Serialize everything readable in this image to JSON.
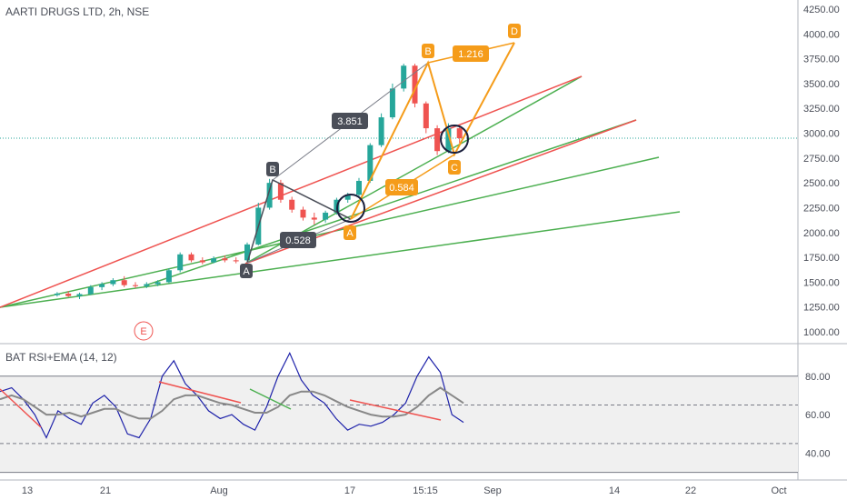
{
  "chart_data": [
    {
      "type": "candlestick",
      "title": "AARTI DRUGS LTD, 2h, NSE",
      "y_axis": {
        "ticks": [
          "4250.00",
          "4000.00",
          "3750.00",
          "3500.00",
          "3250.00",
          "3000.00",
          "2750.00",
          "2500.00",
          "2250.00",
          "2000.00",
          "1750.00",
          "1500.00",
          "1250.00",
          "1000.00"
        ],
        "ylim": [
          1000,
          4250
        ]
      },
      "x_axis": {
        "ticks": [
          "13",
          "21",
          "Aug",
          "17",
          "15:15",
          "Sep",
          "14",
          "22",
          "Oct"
        ]
      },
      "current_price_level": 2950,
      "candles": [
        {
          "t": 0,
          "o": 1370,
          "h": 1400,
          "l": 1355,
          "c": 1385
        },
        {
          "t": 1,
          "o": 1385,
          "h": 1410,
          "l": 1350,
          "c": 1360
        },
        {
          "t": 2,
          "o": 1360,
          "h": 1395,
          "l": 1330,
          "c": 1380
        },
        {
          "t": 3,
          "o": 1380,
          "h": 1470,
          "l": 1370,
          "c": 1450
        },
        {
          "t": 4,
          "o": 1450,
          "h": 1500,
          "l": 1420,
          "c": 1480
        },
        {
          "t": 5,
          "o": 1480,
          "h": 1540,
          "l": 1460,
          "c": 1520
        },
        {
          "t": 6,
          "o": 1520,
          "h": 1560,
          "l": 1450,
          "c": 1470
        },
        {
          "t": 7,
          "o": 1470,
          "h": 1500,
          "l": 1440,
          "c": 1460
        },
        {
          "t": 8,
          "o": 1460,
          "h": 1500,
          "l": 1440,
          "c": 1480
        },
        {
          "t": 9,
          "o": 1480,
          "h": 1520,
          "l": 1460,
          "c": 1500
        },
        {
          "t": 10,
          "o": 1500,
          "h": 1640,
          "l": 1490,
          "c": 1620
        },
        {
          "t": 11,
          "o": 1620,
          "h": 1800,
          "l": 1600,
          "c": 1780
        },
        {
          "t": 12,
          "o": 1780,
          "h": 1800,
          "l": 1700,
          "c": 1720
        },
        {
          "t": 13,
          "o": 1720,
          "h": 1750,
          "l": 1680,
          "c": 1700
        },
        {
          "t": 14,
          "o": 1700,
          "h": 1760,
          "l": 1690,
          "c": 1740
        },
        {
          "t": 15,
          "o": 1740,
          "h": 1770,
          "l": 1700,
          "c": 1720
        },
        {
          "t": 16,
          "o": 1720,
          "h": 1750,
          "l": 1690,
          "c": 1710
        },
        {
          "t": 17,
          "o": 1720,
          "h": 1900,
          "l": 1710,
          "c": 1880
        },
        {
          "t": 18,
          "o": 1880,
          "h": 2300,
          "l": 1870,
          "c": 2250
        },
        {
          "t": 19,
          "o": 2250,
          "h": 2540,
          "l": 2230,
          "c": 2500
        },
        {
          "t": 20,
          "o": 2500,
          "h": 2530,
          "l": 2300,
          "c": 2330
        },
        {
          "t": 21,
          "o": 2330,
          "h": 2360,
          "l": 2200,
          "c": 2230
        },
        {
          "t": 22,
          "o": 2230,
          "h": 2260,
          "l": 2120,
          "c": 2150
        },
        {
          "t": 23,
          "o": 2150,
          "h": 2200,
          "l": 2080,
          "c": 2130
        },
        {
          "t": 24,
          "o": 2130,
          "h": 2220,
          "l": 2100,
          "c": 2200
        },
        {
          "t": 25,
          "o": 2200,
          "h": 2350,
          "l": 2180,
          "c": 2330
        },
        {
          "t": 26,
          "o": 2330,
          "h": 2400,
          "l": 2300,
          "c": 2380
        },
        {
          "t": 27,
          "o": 2380,
          "h": 2550,
          "l": 2360,
          "c": 2520
        },
        {
          "t": 28,
          "o": 2520,
          "h": 2900,
          "l": 2500,
          "c": 2880
        },
        {
          "t": 29,
          "o": 2880,
          "h": 3200,
          "l": 2860,
          "c": 3160
        },
        {
          "t": 30,
          "o": 3160,
          "h": 3500,
          "l": 3140,
          "c": 3450
        },
        {
          "t": 31,
          "o": 3450,
          "h": 3700,
          "l": 3420,
          "c": 3680
        },
        {
          "t": 32,
          "o": 3680,
          "h": 3700,
          "l": 3260,
          "c": 3300
        },
        {
          "t": 33,
          "o": 3300,
          "h": 3320,
          "l": 3000,
          "c": 3050
        },
        {
          "t": 34,
          "o": 3050,
          "h": 3080,
          "l": 2780,
          "c": 2820
        },
        {
          "t": 35,
          "o": 2820,
          "h": 3100,
          "l": 2800,
          "c": 3050
        },
        {
          "t": 36,
          "o": 3050,
          "h": 3080,
          "l": 2900,
          "c": 2950
        }
      ],
      "pattern_labels": [
        "B",
        "A",
        "A",
        "B",
        "D",
        "C",
        "E"
      ],
      "ratio_labels": [
        "3.851",
        "0.528",
        "1.216",
        "0.584"
      ]
    },
    {
      "type": "line",
      "title": "BAT RSI+EMA (14, 12)",
      "y_axis": {
        "ticks": [
          "80.00",
          "60.00",
          "40.00"
        ],
        "ylim": [
          27,
          95
        ]
      },
      "levels": [
        80,
        65,
        45,
        30
      ],
      "series": [
        {
          "color": "#1e22aa",
          "values": [
            72,
            74,
            68,
            60,
            48,
            62,
            58,
            55,
            66,
            70,
            64,
            50,
            48,
            58,
            80,
            88,
            76,
            70,
            62,
            58,
            60,
            55,
            52,
            64,
            80,
            92,
            78,
            70,
            66,
            58,
            52,
            55,
            54,
            56,
            60,
            66,
            80,
            90,
            82,
            60,
            56
          ]
        },
        {
          "color": "#888888",
          "values": [
            68,
            70,
            68,
            64,
            60,
            60,
            61,
            59,
            61,
            63,
            63,
            60,
            58,
            58,
            62,
            68,
            70,
            70,
            68,
            66,
            65,
            63,
            61,
            61,
            64,
            70,
            72,
            72,
            70,
            67,
            64,
            62,
            60,
            59,
            59,
            60,
            64,
            70,
            74,
            70,
            66
          ]
        }
      ]
    }
  ]
}
